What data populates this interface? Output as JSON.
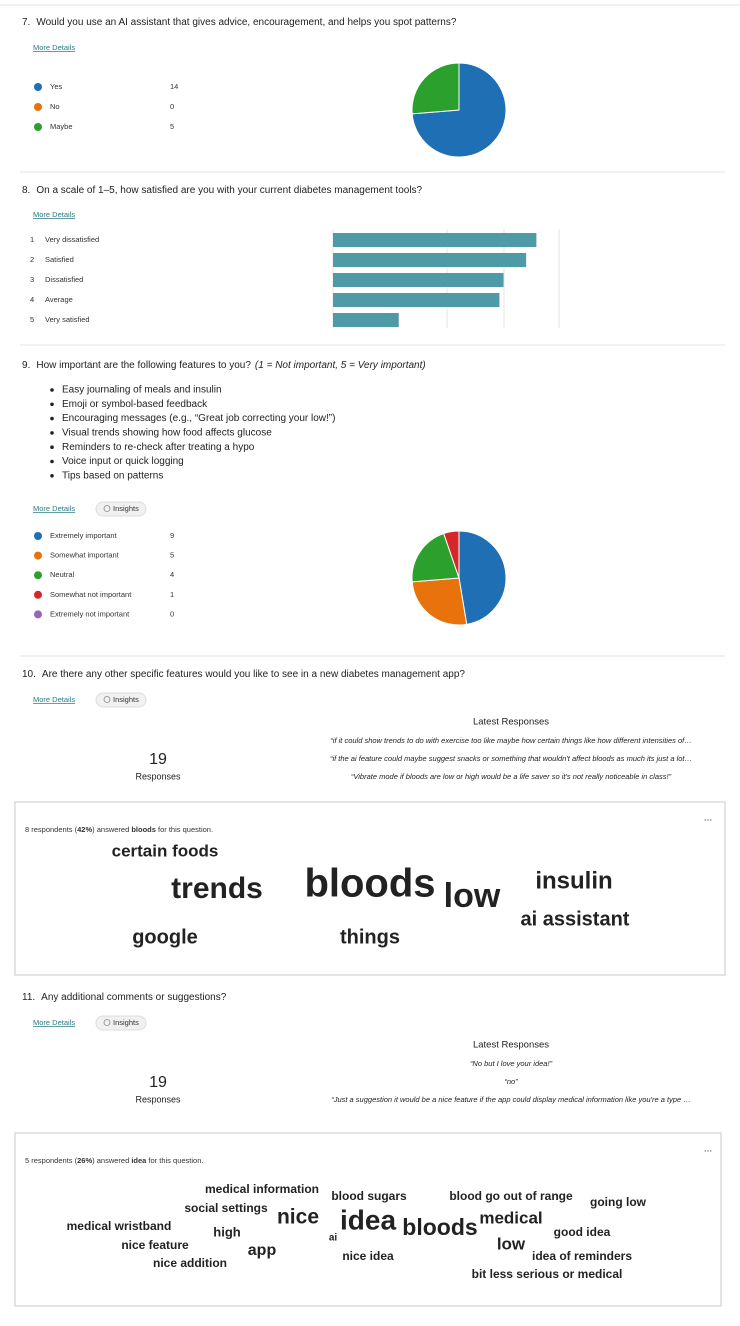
{
  "questions": [
    {
      "number": "7.",
      "title": "Would you use an AI assistant that gives advice, encouragement, and helps you spot patterns?",
      "more_details": "More Details",
      "chart_data": {
        "type": "pie",
        "categories": [
          "Yes",
          "No",
          "Maybe"
        ],
        "values": [
          14,
          0,
          5
        ],
        "colors": [
          "#1f6fb5",
          "#e8720c",
          "#2ca02c"
        ]
      }
    },
    {
      "number": "8.",
      "title": "On a scale of 1–5, how satisfied are you with your current diabetes management tools?",
      "more_details": "More Details",
      "chart_data": {
        "type": "bar",
        "orientation": "horizontal",
        "ranks": [
          1,
          2,
          3,
          4,
          5
        ],
        "categories": [
          "Very dissatisfied",
          "Satisfied",
          "Dissatisfied",
          "Average",
          "Very satisfied"
        ],
        "values": [
          4.95,
          4.7,
          4.15,
          4.05,
          1.6
        ],
        "xlim": [
          0,
          5.5
        ],
        "color": "#4e9aa6"
      }
    },
    {
      "number": "9.",
      "title": "How important are the following features to you?",
      "title_note": "(1 = Not important, 5 = Very important)",
      "features": [
        "Easy journaling of meals and insulin",
        "Emoji or symbol-based feedback",
        "Encouraging messages (e.g., “Great job correcting your low!”)",
        "Visual trends showing how food affects glucose",
        "Reminders to re-check after treating a hypo",
        "Voice input or quick logging",
        "Tips based on patterns"
      ],
      "more_details": "More Details",
      "insights": "Insights",
      "chart_data": {
        "type": "pie",
        "categories": [
          "Extremely important",
          "Somewhat important",
          "Neutral",
          "Somewhat not important",
          "Extremely not important"
        ],
        "values": [
          9,
          5,
          4,
          1,
          0
        ],
        "colors": [
          "#1f6fb5",
          "#e8720c",
          "#2ca02c",
          "#d62728",
          "#9467bd"
        ]
      }
    },
    {
      "number": "10.",
      "title": "Are there any other specific features would you like to see in a new diabetes management app?",
      "more_details": "More Details",
      "insights": "Insights",
      "responses_count": 19,
      "responses_label": "Responses",
      "latest_label": "Latest Responses",
      "latest": [
        "“if it could show trends to do with exercise too like maybe how certain things like how different intensities of…",
        "“if the ai feature could maybe suggest snacks or something that wouldn't affect bloods as much its just a lot…",
        "“Vibrate mode if bloods are low or high would be a life saver so it's not really noticeable in class!”"
      ],
      "word_cloud": {
        "summary": [
          "8 respondents (",
          "42%",
          ") answered ",
          "bloods",
          " for this question."
        ],
        "menu": "...",
        "words": [
          "certain foods",
          "trends",
          "bloods",
          "low",
          "insulin",
          "ai assistant",
          "google",
          "things"
        ]
      }
    },
    {
      "number": "11.",
      "title": "Any additional comments or suggestions?",
      "more_details": "More Details",
      "insights": "Insights",
      "responses_count": 19,
      "responses_label": "Responses",
      "latest_label": "Latest Responses",
      "latest": [
        "“No but I love your idea!”",
        "“no”",
        "“Just a suggestion it would be a nice feature if the app could display medical information like you're a type …"
      ],
      "word_cloud": {
        "summary": [
          "5 respondents (",
          "26%",
          ") answered ",
          "idea",
          " for this question."
        ],
        "menu": "...",
        "words": [
          "medical information",
          "social settings",
          "medical wristband",
          "nice feature",
          "nice addition",
          "high",
          "app",
          "nice",
          "ai",
          "idea",
          "blood sugars",
          "nice idea",
          "bloods",
          "blood go out of range",
          "medical",
          "low",
          "idea of reminders",
          "bit less serious or medical",
          "going low",
          "good idea"
        ]
      }
    }
  ]
}
